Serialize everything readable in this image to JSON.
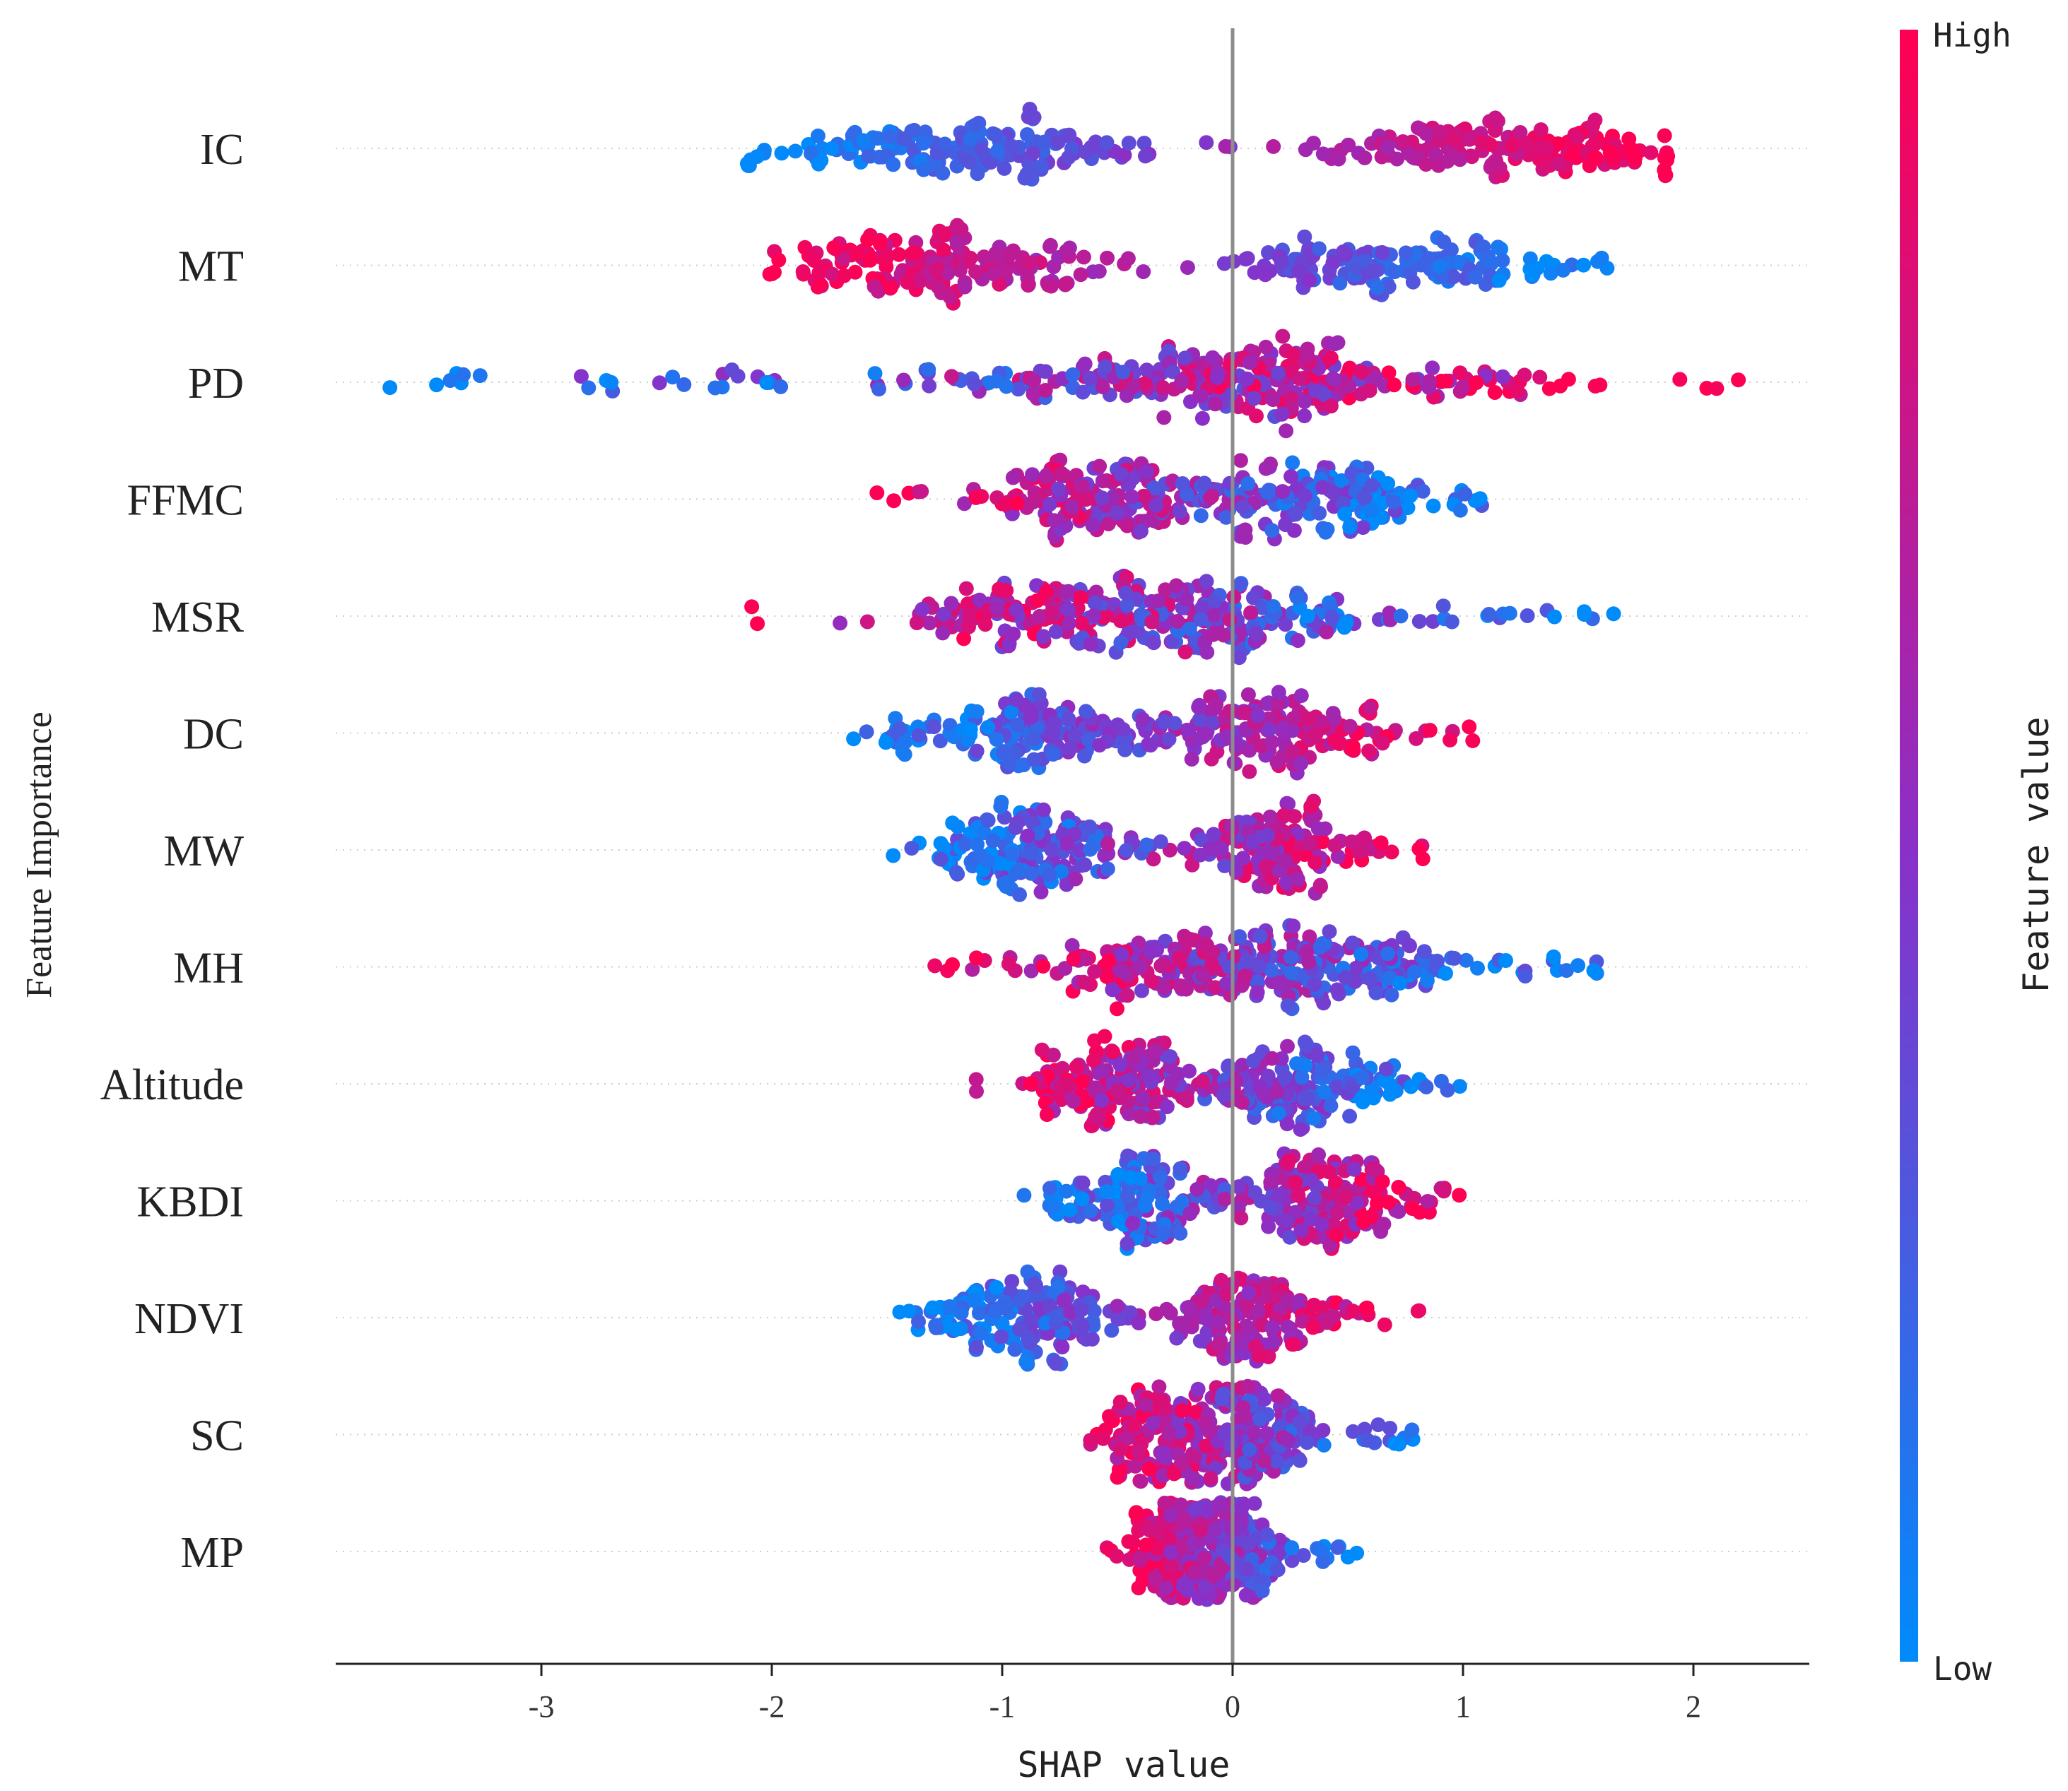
{
  "chart_data": {
    "type": "scatter",
    "subtype": "shap-beeswarm",
    "title": "",
    "xlabel": "SHAP value",
    "ylabel": "Feature Importance",
    "xlim": [
      -3.9,
      2.5
    ],
    "xticks": [
      -3,
      -2,
      -1,
      0,
      1,
      2
    ],
    "xtick_labels": [
      "-3",
      "-2",
      "-1",
      "0",
      "1",
      "2"
    ],
    "grid": false,
    "zero_line": true,
    "colorbar": {
      "label": "Feature value",
      "high_label": "High",
      "low_label": "Low",
      "high_color": "#ff0052",
      "mid_color": "#8a30c8",
      "low_color": "#008bfb"
    },
    "features": [
      {
        "name": "IC",
        "min": -2.1,
        "max": 1.88,
        "mode_neg": -1.2,
        "mode_pos": 1.2,
        "low_side": "neg",
        "strength": 0.85
      },
      {
        "name": "MT",
        "min": -2.0,
        "max": 1.62,
        "mode_neg": -1.3,
        "mode_pos": 0.7,
        "low_side": "pos",
        "strength": 0.8
      },
      {
        "name": "PD",
        "min": -3.65,
        "max": 2.2,
        "mode_neg": -0.1,
        "mode_pos": 0.25,
        "low_side": "neg",
        "strength": 0.5
      },
      {
        "name": "FFMC",
        "min": -1.55,
        "max": 1.08,
        "mode_neg": -0.6,
        "mode_pos": 0.35,
        "low_side": "pos",
        "strength": 0.6
      },
      {
        "name": "MSR",
        "min": -2.08,
        "max": 1.65,
        "mode_neg": -0.7,
        "mode_pos": 0.0,
        "low_side": "pos",
        "strength": 0.5
      },
      {
        "name": "DC",
        "min": -1.65,
        "max": 1.05,
        "mode_neg": -0.9,
        "mode_pos": 0.15,
        "low_side": "neg",
        "strength": 0.7
      },
      {
        "name": "MW",
        "min": -1.47,
        "max": 0.83,
        "mode_neg": -0.85,
        "mode_pos": 0.2,
        "low_side": "neg",
        "strength": 0.6
      },
      {
        "name": "MH",
        "min": -1.3,
        "max": 1.58,
        "mode_neg": -0.3,
        "mode_pos": 0.45,
        "low_side": "pos",
        "strength": 0.6
      },
      {
        "name": "Altitude",
        "min": -1.12,
        "max": 0.98,
        "mode_neg": -0.5,
        "mode_pos": 0.3,
        "low_side": "pos",
        "strength": 0.6
      },
      {
        "name": "KBDI",
        "min": -0.9,
        "max": 0.98,
        "mode_neg": -0.4,
        "mode_pos": 0.4,
        "low_side": "neg",
        "strength": 0.6
      },
      {
        "name": "NDVI",
        "min": -1.45,
        "max": 0.8,
        "mode_neg": -0.9,
        "mode_pos": 0.1,
        "low_side": "neg",
        "strength": 0.7
      },
      {
        "name": "SC",
        "min": -0.62,
        "max": 0.78,
        "mode_neg": -0.3,
        "mode_pos": 0.1,
        "low_side": "pos",
        "strength": 0.6
      },
      {
        "name": "MP",
        "min": -0.55,
        "max": 0.53,
        "mode_neg": -0.25,
        "mode_pos": 0.0,
        "low_side": "pos",
        "strength": 0.7
      }
    ]
  }
}
